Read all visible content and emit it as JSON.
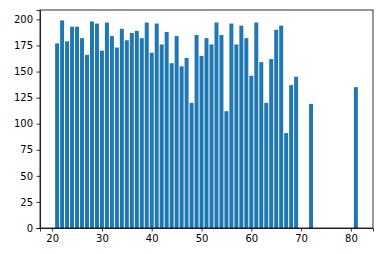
{
  "chart_data": {
    "type": "bar",
    "x": [
      21,
      22,
      23,
      24,
      25,
      26,
      27,
      28,
      29,
      30,
      31,
      32,
      33,
      34,
      35,
      36,
      37,
      38,
      39,
      40,
      41,
      42,
      43,
      44,
      45,
      46,
      47,
      48,
      49,
      50,
      51,
      52,
      53,
      54,
      55,
      56,
      57,
      58,
      59,
      60,
      61,
      62,
      63,
      64,
      65,
      66,
      67,
      68,
      69,
      72,
      81
    ],
    "values": [
      177,
      199,
      179,
      193,
      193,
      182,
      166,
      198,
      196,
      170,
      197,
      184,
      173,
      191,
      180,
      187,
      189,
      182,
      197,
      168,
      196,
      176,
      188,
      158,
      184,
      155,
      163,
      120,
      185,
      165,
      182,
      176,
      197,
      185,
      112,
      196,
      176,
      194,
      182,
      146,
      197,
      159,
      120,
      162,
      190,
      194,
      91,
      137,
      145,
      119,
      135
    ],
    "color": "#1f77b4",
    "xlim": [
      17.56,
      84.44
    ],
    "xticks": [
      20,
      30,
      40,
      50,
      60,
      70,
      80
    ],
    "ylim": [
      0,
      209
    ],
    "yticks": [
      0,
      25,
      50,
      75,
      100,
      125,
      150,
      175,
      200
    ],
    "grid": false
  }
}
